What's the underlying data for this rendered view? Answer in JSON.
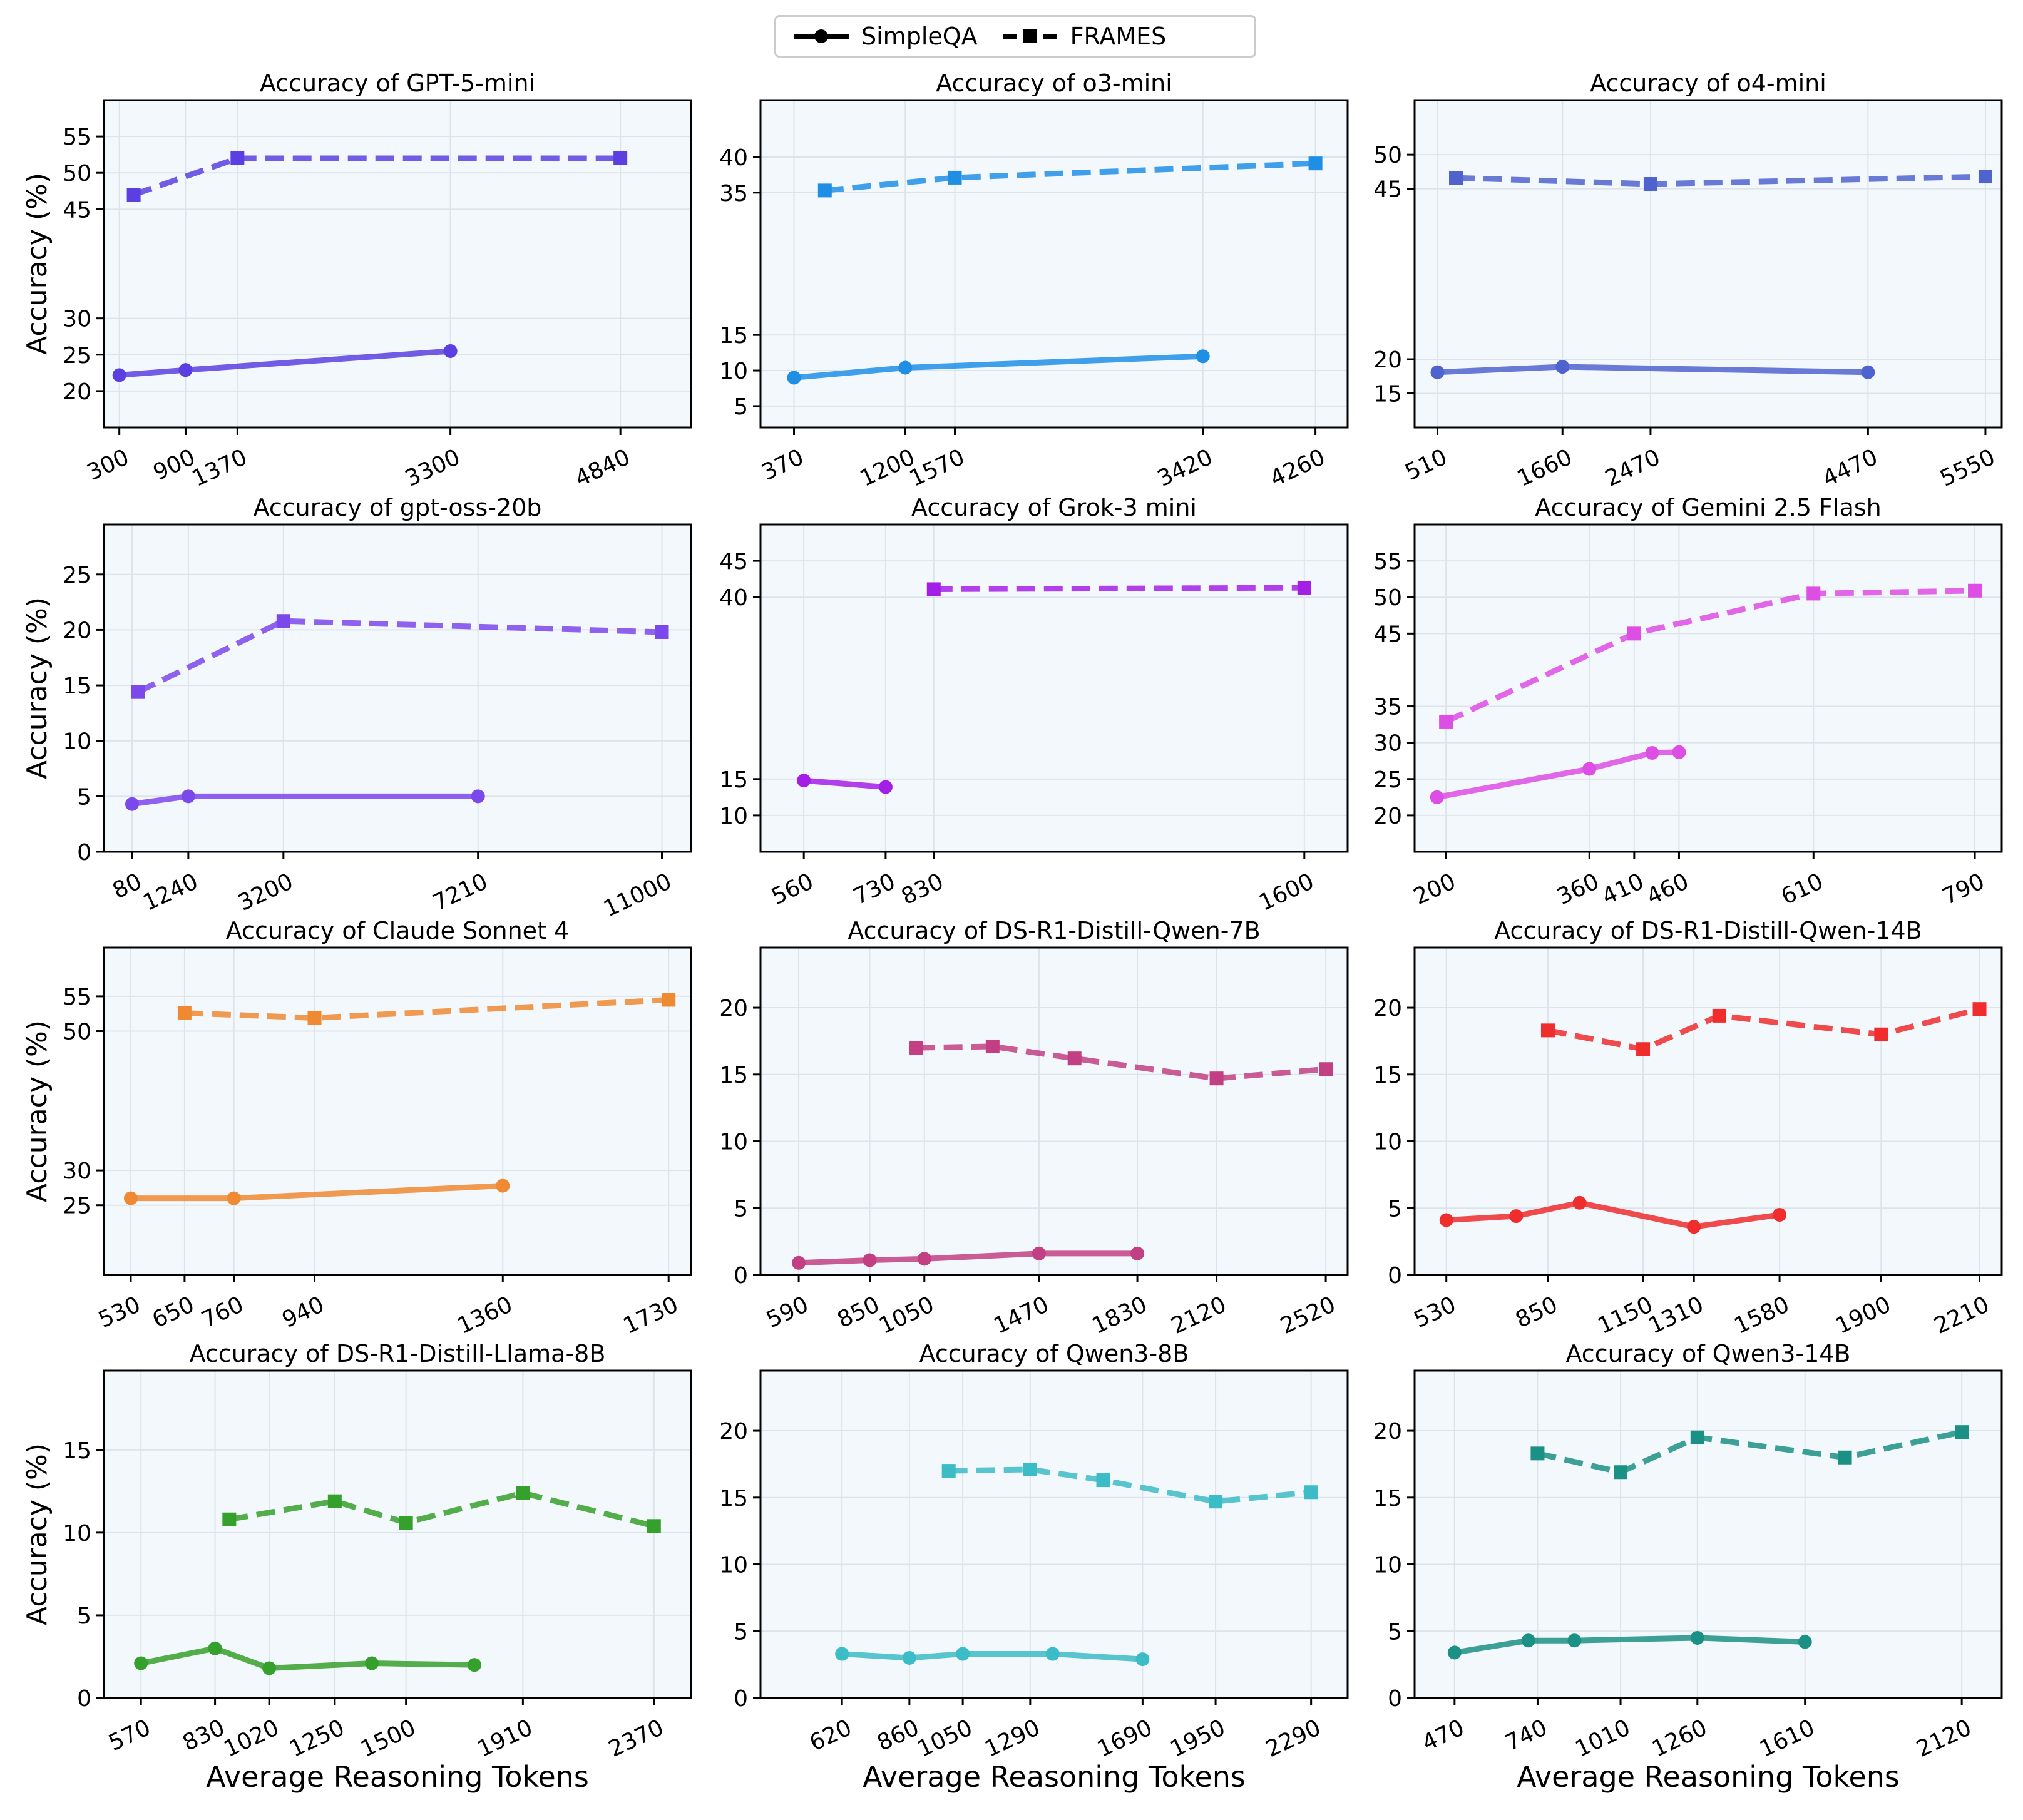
{
  "legend": {
    "simpleqa": "SimpleQA",
    "frames": "FRAMES"
  },
  "ylabel": "Accuracy (%)",
  "xlabel": "Average Reasoning Tokens",
  "chart_data": [
    {
      "type": "line",
      "title": "Accuracy of GPT-5-mini",
      "color": "#5b3fe0",
      "xticks": [
        300,
        900,
        1370,
        3300,
        4840
      ],
      "yticks": [
        20,
        25,
        30,
        45,
        50,
        55
      ],
      "xlim": [
        160,
        5480
      ],
      "ylim": [
        15,
        60
      ],
      "series": [
        {
          "name": "SimpleQA",
          "x": [
            300,
            900,
            3300
          ],
          "y": [
            22.2,
            22.9,
            25.5
          ]
        },
        {
          "name": "FRAMES",
          "x": [
            430,
            1370,
            4840
          ],
          "y": [
            47,
            52,
            52
          ]
        }
      ]
    },
    {
      "type": "line",
      "title": "Accuracy of o3-mini",
      "color": "#1f8fe6",
      "xticks": [
        370,
        1200,
        1570,
        3420,
        4260
      ],
      "yticks": [
        5,
        10,
        15,
        35,
        40
      ],
      "xlim": [
        120,
        4500
      ],
      "ylim": [
        2,
        48
      ],
      "series": [
        {
          "name": "SimpleQA",
          "x": [
            370,
            1200,
            3420
          ],
          "y": [
            9,
            10.4,
            12
          ]
        },
        {
          "name": "FRAMES",
          "x": [
            600,
            1570,
            4260
          ],
          "y": [
            35.3,
            37.1,
            39.1
          ]
        }
      ]
    },
    {
      "type": "line",
      "title": "Accuracy of o4-mini",
      "color": "#4f63cf",
      "xticks": [
        510,
        1660,
        2470,
        4470,
        5550
      ],
      "yticks": [
        15,
        20,
        45,
        50
      ],
      "xlim": [
        300,
        5700
      ],
      "ylim": [
        10,
        58
      ],
      "series": [
        {
          "name": "SimpleQA",
          "x": [
            510,
            1660,
            4470
          ],
          "y": [
            18.1,
            18.9,
            18.1
          ]
        },
        {
          "name": "FRAMES",
          "x": [
            680,
            2470,
            5550
          ],
          "y": [
            46.6,
            45.7,
            46.8
          ]
        }
      ]
    },
    {
      "type": "line",
      "title": "Accuracy of gpt-oss-20b",
      "color": "#7b48ec",
      "xticks": [
        80,
        1240,
        3200,
        7210,
        11000
      ],
      "yticks": [
        0,
        5,
        10,
        15,
        20,
        25
      ],
      "xlim": [
        -500,
        11600
      ],
      "ylim": [
        0,
        29.5
      ],
      "series": [
        {
          "name": "SimpleQA",
          "x": [
            80,
            1240,
            7210
          ],
          "y": [
            4.3,
            5,
            5
          ]
        },
        {
          "name": "FRAMES",
          "x": [
            200,
            3200,
            11000
          ],
          "y": [
            14.4,
            20.8,
            19.8
          ]
        }
      ]
    },
    {
      "type": "line",
      "title": "Accuracy of Grok-3 mini",
      "color": "#a41fe6",
      "xticks": [
        560,
        730,
        830,
        1600
      ],
      "yticks": [
        10,
        15,
        40,
        45
      ],
      "xlim": [
        470,
        1690
      ],
      "ylim": [
        5,
        50
      ],
      "series": [
        {
          "name": "SimpleQA",
          "x": [
            560,
            730
          ],
          "y": [
            14.8,
            13.9
          ]
        },
        {
          "name": "FRAMES",
          "x": [
            830,
            1600
          ],
          "y": [
            41.1,
            41.3
          ]
        }
      ]
    },
    {
      "type": "line",
      "title": "Accuracy of Gemini 2.5 Flash",
      "color": "#dd4ee4",
      "xticks": [
        200,
        360,
        410,
        460,
        610,
        790
      ],
      "yticks": [
        20,
        25,
        30,
        35,
        45,
        50,
        55
      ],
      "xlim": [
        165,
        820
      ],
      "ylim": [
        15,
        60
      ],
      "series": [
        {
          "name": "SimpleQA",
          "x": [
            190,
            360,
            430,
            460
          ],
          "y": [
            22.5,
            26.4,
            28.6,
            28.7
          ]
        },
        {
          "name": "FRAMES",
          "x": [
            200,
            410,
            610,
            790
          ],
          "y": [
            32.9,
            45,
            50.5,
            50.9
          ]
        }
      ]
    },
    {
      "type": "line",
      "title": "Accuracy of Claude Sonnet 4",
      "color": "#ef8a33",
      "xticks": [
        530,
        650,
        760,
        940,
        1360,
        1730
      ],
      "yticks": [
        25,
        30,
        50,
        55
      ],
      "xlim": [
        470,
        1780
      ],
      "ylim": [
        15,
        62
      ],
      "series": [
        {
          "name": "SimpleQA",
          "x": [
            530,
            760,
            1360
          ],
          "y": [
            26,
            26,
            27.8
          ]
        },
        {
          "name": "FRAMES",
          "x": [
            650,
            940,
            1730
          ],
          "y": [
            52.6,
            51.9,
            54.5
          ]
        }
      ]
    },
    {
      "type": "line",
      "title": "Accuracy of DS-R1-Distill-Qwen-7B",
      "color": "#c13f82",
      "xticks": [
        590,
        850,
        1050,
        1470,
        1830,
        2120,
        2520
      ],
      "yticks": [
        0,
        5,
        10,
        15,
        20
      ],
      "xlim": [
        450,
        2600
      ],
      "ylim": [
        0,
        24.5
      ],
      "series": [
        {
          "name": "SimpleQA",
          "x": [
            590,
            850,
            1050,
            1470,
            1830
          ],
          "y": [
            0.9,
            1.1,
            1.2,
            1.6,
            1.6
          ]
        },
        {
          "name": "FRAMES",
          "x": [
            1020,
            1300,
            1600,
            2120,
            2520
          ],
          "y": [
            17,
            17.1,
            16.2,
            14.7,
            15.4
          ]
        }
      ]
    },
    {
      "type": "line",
      "title": "Accuracy of DS-R1-Distill-Qwen-14B",
      "color": "#ef2d2d",
      "xticks": [
        530,
        850,
        1150,
        1310,
        1580,
        1900,
        2210
      ],
      "yticks": [
        0,
        5,
        10,
        15,
        20
      ],
      "xlim": [
        430,
        2280
      ],
      "ylim": [
        0,
        24.5
      ],
      "series": [
        {
          "name": "SimpleQA",
          "x": [
            530,
            750,
            950,
            1310,
            1580
          ],
          "y": [
            4.1,
            4.4,
            5.4,
            3.6,
            4.5
          ]
        },
        {
          "name": "FRAMES",
          "x": [
            850,
            1150,
            1390,
            1900,
            2210
          ],
          "y": [
            18.3,
            16.9,
            19.4,
            18,
            19.9
          ]
        }
      ]
    },
    {
      "type": "line",
      "title": "Accuracy of DS-R1-Distill-Llama-8B",
      "color": "#36a02c",
      "xticks": [
        570,
        830,
        1020,
        1250,
        1500,
        1910,
        2370
      ],
      "yticks": [
        0,
        5,
        10,
        15
      ],
      "xlim": [
        440,
        2500
      ],
      "ylim": [
        0,
        19.8
      ],
      "series": [
        {
          "name": "SimpleQA",
          "x": [
            570,
            830,
            1020,
            1380,
            1740
          ],
          "y": [
            2.1,
            3,
            1.8,
            2.1,
            2
          ]
        },
        {
          "name": "FRAMES",
          "x": [
            880,
            1250,
            1500,
            1910,
            2370
          ],
          "y": [
            10.8,
            11.9,
            10.6,
            12.4,
            10.4
          ]
        }
      ]
    },
    {
      "type": "line",
      "title": "Accuracy of Qwen3-8B",
      "color": "#3cbcc6",
      "xticks": [
        620,
        860,
        1050,
        1290,
        1690,
        1950,
        2290
      ],
      "yticks": [
        0,
        5,
        10,
        15,
        20
      ],
      "xlim": [
        330,
        2420
      ],
      "ylim": [
        0,
        24.5
      ],
      "series": [
        {
          "name": "SimpleQA",
          "x": [
            620,
            860,
            1050,
            1370,
            1690
          ],
          "y": [
            3.3,
            3,
            3.3,
            3.3,
            2.9
          ]
        },
        {
          "name": "FRAMES",
          "x": [
            1000,
            1290,
            1550,
            1950,
            2290
          ],
          "y": [
            17,
            17.1,
            16.3,
            14.7,
            15.4
          ]
        }
      ]
    },
    {
      "type": "line",
      "title": "Accuracy of Qwen3-14B",
      "color": "#1b9185",
      "xticks": [
        470,
        740,
        1010,
        1260,
        1610,
        2120
      ],
      "yticks": [
        0,
        5,
        10,
        15,
        20
      ],
      "xlim": [
        340,
        2250
      ],
      "ylim": [
        0,
        24.5
      ],
      "series": [
        {
          "name": "SimpleQA",
          "x": [
            470,
            710,
            860,
            1260,
            1610
          ],
          "y": [
            3.4,
            4.3,
            4.3,
            4.5,
            4.2
          ]
        },
        {
          "name": "FRAMES",
          "x": [
            740,
            1010,
            1260,
            1740,
            2120
          ],
          "y": [
            18.3,
            16.9,
            19.5,
            18,
            19.9
          ]
        }
      ]
    }
  ]
}
